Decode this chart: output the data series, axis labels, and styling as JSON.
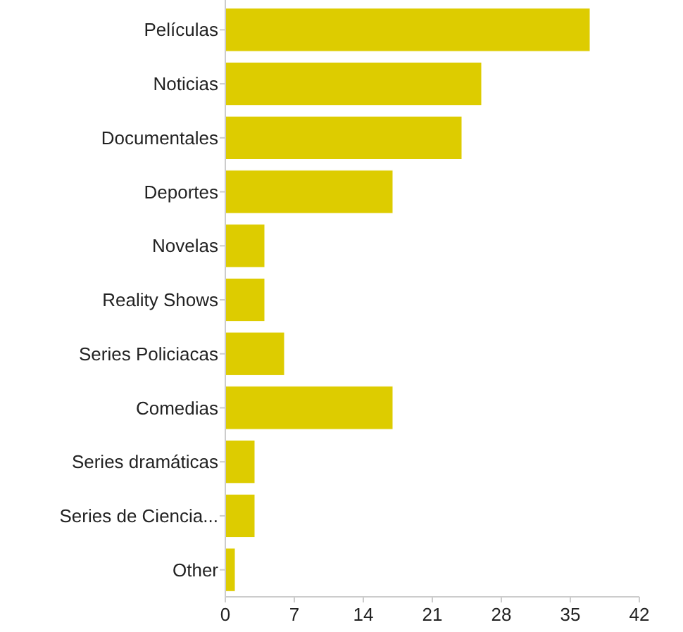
{
  "chart_data": {
    "type": "bar",
    "orientation": "horizontal",
    "categories": [
      "Películas",
      "Noticias",
      "Documentales",
      "Deportes",
      "Novelas",
      "Reality Shows",
      "Series Policiacas",
      "Comedias",
      "Series dramáticas",
      "Series de Ciencia...",
      "Other"
    ],
    "values": [
      37,
      26,
      24,
      17,
      4,
      4,
      6,
      17,
      3,
      3,
      1
    ],
    "color": "#ddcc00",
    "xlim": [
      0,
      42
    ],
    "xticks": [
      0,
      7,
      14,
      21,
      28,
      35,
      42
    ],
    "grid": false
  }
}
